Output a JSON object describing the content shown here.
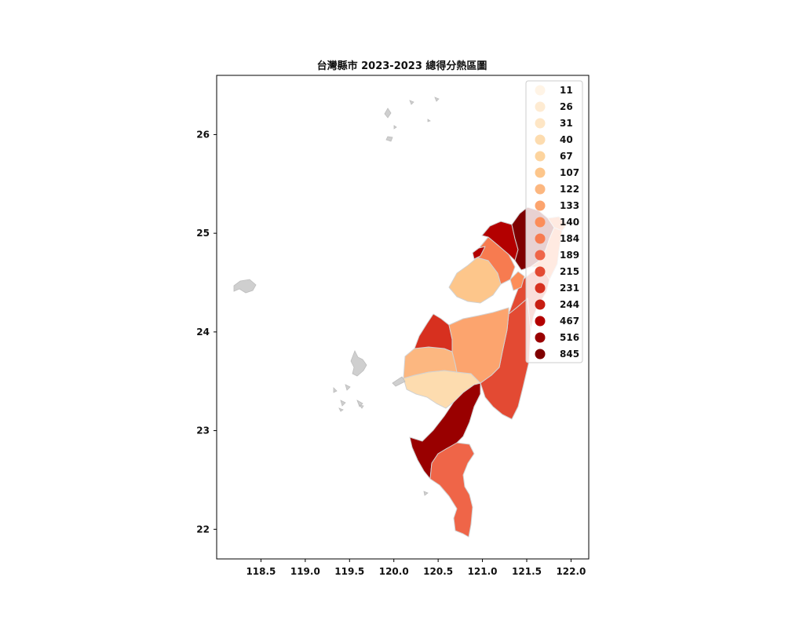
{
  "title": "台灣縣市 2023-2023 總得分熱區圖",
  "axes": {
    "xlim": [
      118.0,
      122.2
    ],
    "ylim": [
      21.7,
      26.6
    ],
    "xticks": [
      "118.5",
      "119.0",
      "119.5",
      "120.0",
      "120.5",
      "121.0",
      "121.5",
      "122.0"
    ],
    "yticks": [
      "22",
      "23",
      "24",
      "25",
      "26"
    ]
  },
  "chart_data": {
    "type": "choropleth",
    "title": "台灣縣市 2023-2023 總得分熱區圖",
    "colormap": "OrRd",
    "legend_position": "top-right",
    "legend": [
      {
        "label": "11",
        "color": "#fff4e6"
      },
      {
        "label": "26",
        "color": "#feebd2"
      },
      {
        "label": "31",
        "color": "#fee6c5"
      },
      {
        "label": "40",
        "color": "#fddcaf"
      },
      {
        "label": "67",
        "color": "#fdd49e"
      },
      {
        "label": "107",
        "color": "#fdc68b"
      },
      {
        "label": "122",
        "color": "#fcb780"
      },
      {
        "label": "133",
        "color": "#fca46e"
      },
      {
        "label": "140",
        "color": "#fc8d59"
      },
      {
        "label": "184",
        "color": "#f77b50"
      },
      {
        "label": "189",
        "color": "#ef6548"
      },
      {
        "label": "215",
        "color": "#e34a33"
      },
      {
        "label": "231",
        "color": "#d7301f"
      },
      {
        "label": "244",
        "color": "#c71e12"
      },
      {
        "label": "467",
        "color": "#b30000"
      },
      {
        "label": "516",
        "color": "#990000"
      },
      {
        "label": "845",
        "color": "#7f0000"
      }
    ]
  }
}
